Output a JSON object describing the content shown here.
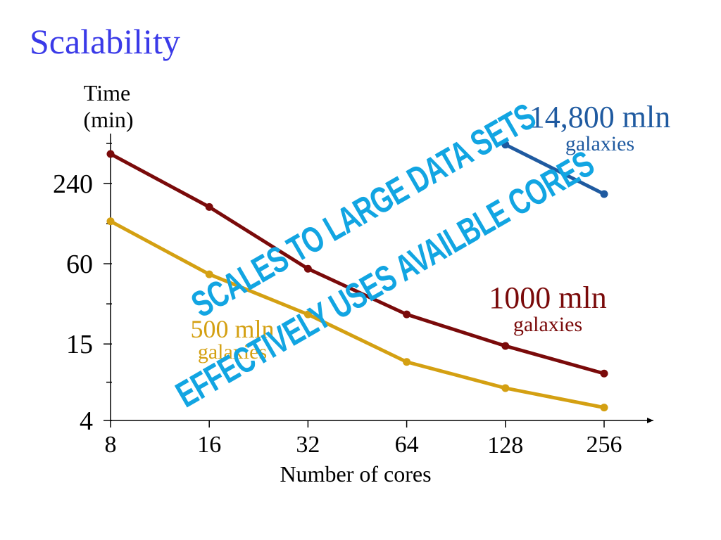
{
  "slide": {
    "title": "Scalability"
  },
  "overlay": {
    "line1": "SCALES TO LARGE DATA SETS",
    "line2": "EFFECTIVELY USES AVAILBLE CORES",
    "color": "#12a5e2"
  },
  "chart_data": {
    "type": "line",
    "title": "",
    "xlabel": "Number of cores",
    "ylabel": "Time\n(min)",
    "ylabel_lines": [
      "Time",
      "(min)"
    ],
    "x_scale": "log2",
    "y_scale": "log",
    "categories": [
      8,
      16,
      32,
      64,
      128,
      256
    ],
    "x_tick_labels": [
      "8",
      "16",
      "32",
      "64",
      "128",
      "256"
    ],
    "y_ticks": [
      4,
      15,
      60,
      240
    ],
    "y_tick_labels": [
      "4",
      "15",
      "60",
      "240"
    ],
    "xlim": [
      8,
      256
    ],
    "ylim": [
      4,
      500
    ],
    "grid": false,
    "series": [
      {
        "name": "1000 mln galaxies",
        "label_lines": [
          "1000 mln",
          "galaxies"
        ],
        "color": "#7a0a0a",
        "x": [
          8,
          16,
          32,
          64,
          128,
          256
        ],
        "values": [
          400,
          160,
          55,
          25,
          14.5,
          9
        ]
      },
      {
        "name": "500 mln galaxies",
        "label_lines": [
          "500 mln",
          "galaxies"
        ],
        "color": "#d4a012",
        "x": [
          8,
          16,
          32,
          64,
          128,
          256
        ],
        "values": [
          125,
          50,
          25,
          11,
          7,
          5
        ]
      },
      {
        "name": "14,800 mln galaxies",
        "label_lines": [
          "14,800 mln",
          "galaxies"
        ],
        "color": "#1f5aa0",
        "x": [
          128,
          256
        ],
        "values": [
          470,
          200
        ]
      }
    ]
  }
}
